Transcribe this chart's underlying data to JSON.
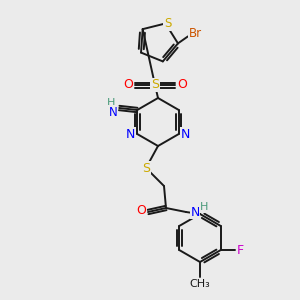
{
  "bg_color": "#ebebeb",
  "bond_color": "#1a1a1a",
  "colors": {
    "N": "#0000ff",
    "S": "#ccaa00",
    "O": "#ff0000",
    "Br": "#cc5500",
    "F": "#cc00cc",
    "H": "#4a9a7a",
    "C": "#1a1a1a"
  },
  "figsize": [
    3.0,
    3.0
  ],
  "dpi": 100
}
